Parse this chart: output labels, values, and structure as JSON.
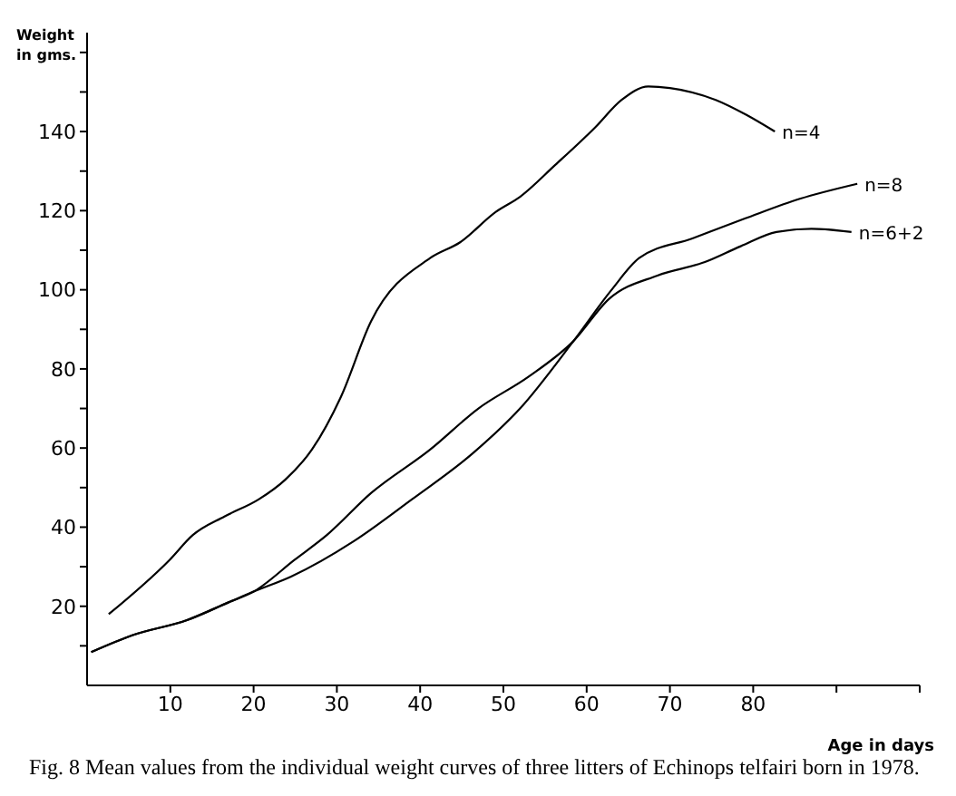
{
  "chart_data": {
    "type": "line",
    "ylabel": "Weight\nin gms.",
    "xlabel": "Age in days",
    "annotations": [
      "Fig. 8  Mean values from the individual weight curves of three litters of Echinops telfairi born in 1978."
    ],
    "xlim": [
      0,
      100
    ],
    "xticks": [
      10,
      20,
      30,
      40,
      50,
      60,
      70,
      80,
      {
        "value": 90,
        "label": null
      },
      {
        "value": 100,
        "label": null
      }
    ],
    "ylim": [
      0,
      165
    ],
    "yticks": [
      {
        "value": 10,
        "label": null
      },
      20,
      {
        "value": 30,
        "label": null
      },
      40,
      {
        "value": 50,
        "label": null
      },
      60,
      {
        "value": 70,
        "label": null
      },
      80,
      {
        "value": 90,
        "label": null
      },
      100,
      {
        "value": 110,
        "label": null
      },
      120,
      {
        "value": 130,
        "label": null
      },
      140,
      {
        "value": 150,
        "label": null
      },
      {
        "value": 160,
        "label": null
      }
    ],
    "marker": "none",
    "line_style": "solid",
    "series": [
      {
        "name": "n=4",
        "color": "#000000",
        "x": [
          2.6,
          9.9,
          12.7,
          16.5,
          20.6,
          23.8,
          27,
          30.5,
          34.1,
          41.2,
          44.8,
          49.1,
          52,
          56.2,
          61,
          64.2,
          67.4,
          70,
          75.5,
          79.2,
          82.6
        ],
        "values": [
          18,
          31.7,
          38,
          42.7,
          47,
          52,
          59.6,
          73,
          92,
          108,
          112,
          119.7,
          123.5,
          131.5,
          141,
          148,
          151.4,
          151,
          148,
          144.2,
          140
        ]
      },
      {
        "name": "n=8",
        "color": "#000000",
        "x": [
          0.5,
          5.5,
          12,
          17,
          20,
          24.5,
          32,
          39,
          46.4,
          52,
          58.4,
          63,
          66.3,
          72.7,
          79,
          85.6,
          92.5
        ],
        "values": [
          8.4,
          12.7,
          16.5,
          21,
          23.7,
          27.5,
          36.4,
          47,
          58.8,
          70,
          87,
          100,
          108,
          113,
          118,
          123,
          126.8
        ]
      },
      {
        "name": "n=6+2",
        "color": "#000000",
        "x": [
          0.5,
          5.5,
          12,
          17,
          20,
          24.9,
          28.8,
          34.1,
          41.2,
          47,
          53,
          58.4,
          62.7,
          68.5,
          74.2,
          78.5,
          82.8,
          87,
          91.8
        ],
        "values": [
          8.4,
          12.7,
          16.5,
          21,
          23.7,
          31.7,
          38,
          48.6,
          59.6,
          70,
          78,
          87,
          97.7,
          103.6,
          107,
          111,
          114.6,
          115.4,
          114.6
        ]
      }
    ]
  }
}
